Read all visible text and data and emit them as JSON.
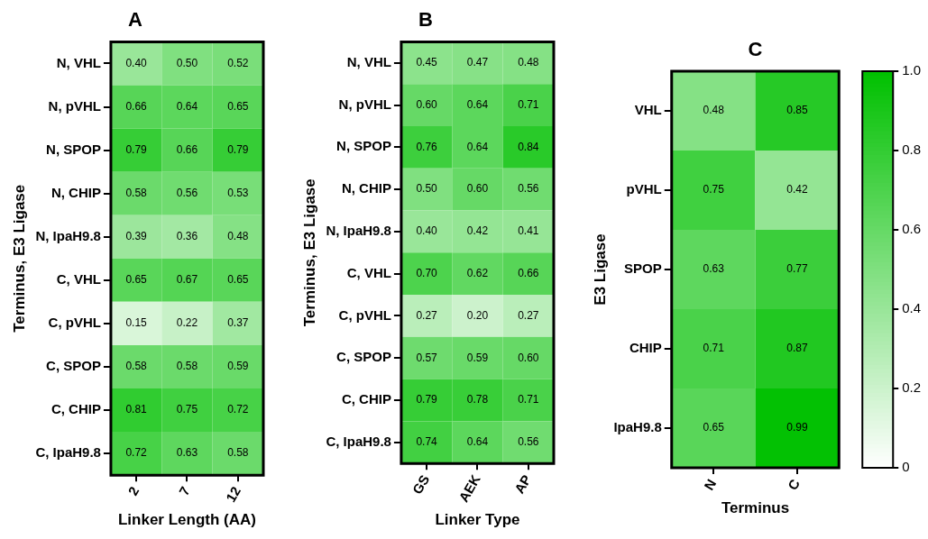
{
  "chart_data": [
    {
      "type": "heatmap",
      "title": "A",
      "xlabel": "Linker Length (AA)",
      "ylabel": "Terminus, E3 Ligase",
      "color": "#00c000",
      "categories": [
        "2",
        "7",
        "12"
      ],
      "y_categories": [
        "N, VHL",
        "N, pVHL",
        "N, SPOP",
        "N, CHIP",
        "N, IpaH9.8",
        "C, VHL",
        "C, pVHL",
        "C, SPOP",
        "C, CHIP",
        "C, IpaH9.8"
      ],
      "cells": [
        [
          0.4,
          0.5,
          0.52
        ],
        [
          0.66,
          0.64,
          0.65
        ],
        [
          0.79,
          0.66,
          0.79
        ],
        [
          0.58,
          0.56,
          0.53
        ],
        [
          0.39,
          0.36,
          0.48
        ],
        [
          0.65,
          0.67,
          0.65
        ],
        [
          0.15,
          0.22,
          0.37
        ],
        [
          0.58,
          0.58,
          0.59
        ],
        [
          0.81,
          0.75,
          0.72
        ],
        [
          0.72,
          0.63,
          0.58
        ]
      ],
      "cell_labels": [
        [
          "0.40",
          "0.50",
          "0.52"
        ],
        [
          "0.66",
          "0.64",
          "0.65"
        ],
        [
          "0.79",
          "0.66",
          "0.79"
        ],
        [
          "0.58",
          "0.56",
          "0.53"
        ],
        [
          "0.39",
          "0.36",
          "0.48"
        ],
        [
          "0.65",
          "0.67",
          "0.65"
        ],
        [
          "0.15",
          "0.22",
          "0.37"
        ],
        [
          "0.58",
          "0.58",
          "0.59"
        ],
        [
          "0.81",
          "0.75",
          "0.72"
        ],
        [
          "0.72",
          "0.63",
          "0.58"
        ]
      ]
    },
    {
      "type": "heatmap",
      "title": "B",
      "xlabel": "Linker Type",
      "ylabel": "Terminus, E3 Ligase",
      "color": "#00c000",
      "categories": [
        "GS",
        "AEK",
        "AP"
      ],
      "y_categories": [
        "N, VHL",
        "N, pVHL",
        "N, SPOP",
        "N, CHIP",
        "N, IpaH9.8",
        "C, VHL",
        "C, pVHL",
        "C, SPOP",
        "C, CHIP",
        "C, IpaH9.8"
      ],
      "cells": [
        [
          0.45,
          0.47,
          0.48
        ],
        [
          0.6,
          0.64,
          0.71
        ],
        [
          0.76,
          0.64,
          0.84
        ],
        [
          0.5,
          0.6,
          0.56
        ],
        [
          0.4,
          0.42,
          0.41
        ],
        [
          0.7,
          0.62,
          0.66
        ],
        [
          0.27,
          0.2,
          0.27
        ],
        [
          0.57,
          0.59,
          0.6
        ],
        [
          0.79,
          0.78,
          0.71
        ],
        [
          0.74,
          0.64,
          0.56
        ]
      ],
      "cell_labels": [
        [
          "0.45",
          "0.47",
          "0.48"
        ],
        [
          "0.60",
          "0.64",
          "0.71"
        ],
        [
          "0.76",
          "0.64",
          "0.84"
        ],
        [
          "0.50",
          "0.60",
          "0.56"
        ],
        [
          "0.40",
          "0.42",
          "0.41"
        ],
        [
          "0.70",
          "0.62",
          "0.66"
        ],
        [
          "0.27",
          "0.20",
          "0.27"
        ],
        [
          "0.57",
          "0.59",
          "0.60"
        ],
        [
          "0.79",
          "0.78",
          "0.71"
        ],
        [
          "0.74",
          "0.64",
          "0.56"
        ]
      ]
    },
    {
      "type": "heatmap",
      "title": "C",
      "xlabel": "Terminus",
      "ylabel": "E3 Ligase",
      "color": "#00c000",
      "categories": [
        "N",
        "C"
      ],
      "y_categories": [
        "VHL",
        "pVHL",
        "SPOP",
        "CHIP",
        "IpaH9.8"
      ],
      "cells": [
        [
          0.48,
          0.85
        ],
        [
          0.75,
          0.42
        ],
        [
          0.63,
          0.77
        ],
        [
          0.71,
          0.87
        ],
        [
          0.65,
          0.99
        ]
      ],
      "cell_labels": [
        [
          "0.48",
          "0.85"
        ],
        [
          "0.75",
          "0.42"
        ],
        [
          "0.63",
          "0.77"
        ],
        [
          "0.71",
          "0.87"
        ],
        [
          "0.65",
          "0.99"
        ]
      ],
      "clim": [
        0,
        1
      ],
      "cticks": [
        0,
        0.2,
        0.4,
        0.6,
        0.8,
        {
          "value": 1,
          "label": "1.0"
        }
      ]
    }
  ]
}
